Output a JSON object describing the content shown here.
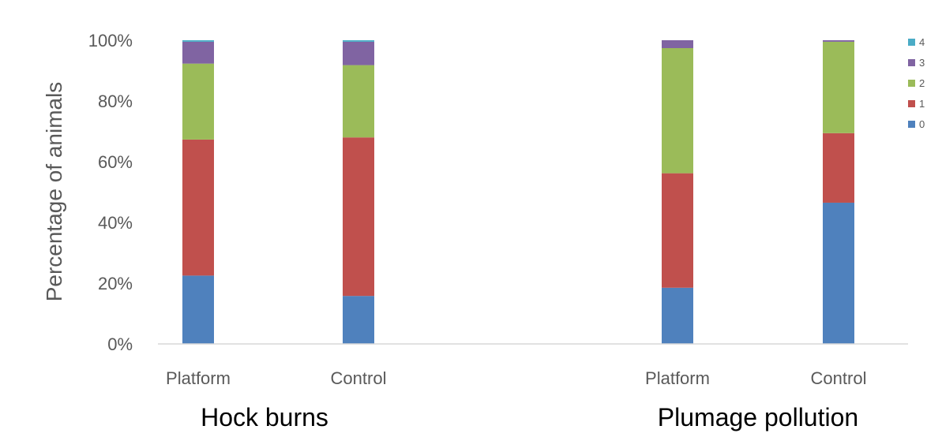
{
  "chart_data": {
    "type": "bar",
    "stacked": true,
    "ylabel": "Percentage of animals",
    "ylim": [
      0,
      100
    ],
    "yticks": [
      "0%",
      "20%",
      "40%",
      "60%",
      "80%",
      "100%"
    ],
    "yunit": "%",
    "grid": false,
    "legend_position": "right",
    "groups": [
      {
        "label": "Hock burns",
        "categories": [
          "Platform",
          "Control"
        ],
        "series": [
          {
            "name": "0",
            "color": "#4F81BD",
            "values": [
              22.5,
              15.8
            ]
          },
          {
            "name": "1",
            "color": "#C0504D",
            "values": [
              44.8,
              52.2
            ]
          },
          {
            "name": "2",
            "color": "#9BBB59",
            "values": [
              25.0,
              23.8
            ]
          },
          {
            "name": "3",
            "color": "#8064A2",
            "values": [
              7.2,
              7.7
            ]
          },
          {
            "name": "4",
            "color": "#4BACC6",
            "values": [
              0.5,
              0.5
            ]
          }
        ]
      },
      {
        "label": "Plumage pollution",
        "categories": [
          "Platform",
          "Control"
        ],
        "series": [
          {
            "name": "0",
            "color": "#4F81BD",
            "values": [
              18.5,
              46.5
            ]
          },
          {
            "name": "1",
            "color": "#C0504D",
            "values": [
              37.7,
              22.9
            ]
          },
          {
            "name": "2",
            "color": "#9BBB59",
            "values": [
              41.2,
              30.1
            ]
          },
          {
            "name": "3",
            "color": "#8064A2",
            "values": [
              2.6,
              0.5
            ]
          },
          {
            "name": "4",
            "color": "#4BACC6",
            "values": [
              0.0,
              0.0
            ]
          }
        ]
      }
    ],
    "legend": [
      {
        "name": "4",
        "color": "#4BACC6"
      },
      {
        "name": "3",
        "color": "#8064A2"
      },
      {
        "name": "2",
        "color": "#9BBB59"
      },
      {
        "name": "1",
        "color": "#C0504D"
      },
      {
        "name": "0",
        "color": "#4F81BD"
      }
    ]
  }
}
